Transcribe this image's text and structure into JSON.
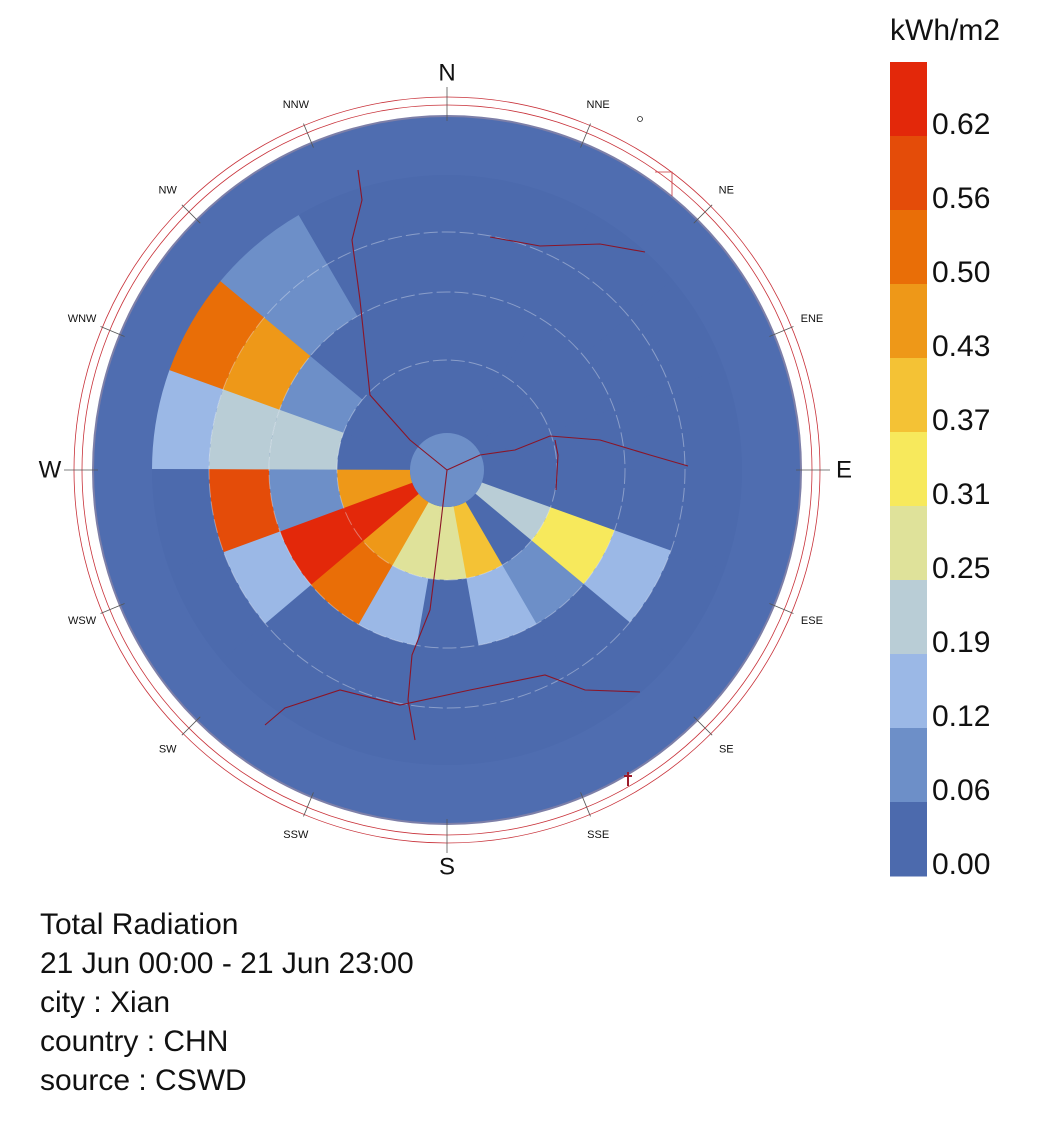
{
  "chart_data": {
    "type": "radiation rose",
    "legend": {
      "title": "kWh/m2",
      "ticks": [
        "0.62",
        "0.56",
        "0.50",
        "0.43",
        "0.37",
        "0.31",
        "0.25",
        "0.19",
        "0.12",
        "0.06",
        "0.00"
      ],
      "min": 0.0,
      "max": 0.68,
      "colors": [
        "#4c6aad",
        "#6d8fc8",
        "#9bb8e6",
        "#b9cdd6",
        "#dfe29a",
        "#f7e95c",
        "#f4c235",
        "#ee9818",
        "#e96e07",
        "#e44c09",
        "#e3280a"
      ]
    },
    "direction_labels": [
      "N",
      "NNE",
      "NE",
      "ENE",
      "E",
      "ESE",
      "SE",
      "SSE",
      "S",
      "SSW",
      "SW",
      "WSW",
      "W",
      "WNW",
      "NW",
      "NNW"
    ],
    "rings": [
      "inner",
      "middle",
      "outer"
    ],
    "sectors_per_ring": 18,
    "sector_order": "clockwise from W",
    "inner_ring": [
      0.05,
      0.05,
      0.05,
      0.05,
      0.05,
      0.05,
      0.05,
      0.05,
      0.05,
      0.05,
      0.2,
      0.03,
      0.4,
      0.27,
      0.3,
      0.48,
      0.62,
      0.44
    ],
    "middle_ring": [
      0.22,
      0.12,
      0.06,
      0.04,
      0.03,
      0.03,
      0.03,
      0.03,
      0.03,
      0.06,
      0.35,
      0.1,
      0.16,
      0.05,
      0.14,
      0.52,
      0.65,
      0.1
    ],
    "outer_ring": [
      0.23,
      0.44,
      0.08,
      0.03,
      0.03,
      0.03,
      0.03,
      0.03,
      0.03,
      0.05,
      0.17,
      0.05,
      0.04,
      0.03,
      0.03,
      0.05,
      0.13,
      0.6
    ],
    "edge_ring": [
      0.15,
      0.51,
      0.07,
      0.02,
      0.02,
      0.02,
      0.02,
      0.02,
      0.02,
      0.04,
      0.06,
      0.04,
      0.02,
      0.02,
      0.02,
      0.02,
      0.02,
      0.02
    ],
    "center_value": 0.12
  },
  "info": {
    "title": "Total Radiation",
    "period": "21 Jun 00:00 - 21 Jun 23:00",
    "city": "city : Xian",
    "country": "country : CHN",
    "source": "source : CSWD"
  }
}
